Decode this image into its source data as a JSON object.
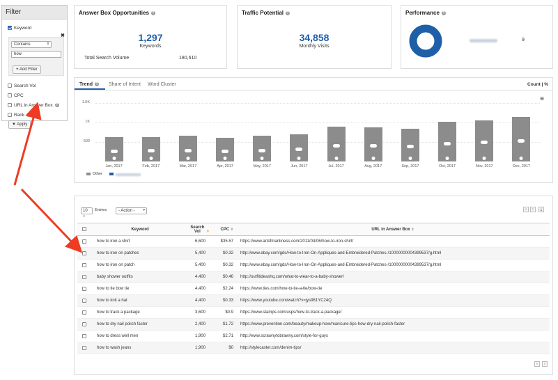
{
  "filter": {
    "title": "Filter",
    "keyword_label": "Keyword",
    "keyword_checked": true,
    "operator": "Contains",
    "value": "how",
    "add_filter_label": "Add Filter",
    "options": [
      {
        "label": "Search Vol",
        "checked": false,
        "has_help": false
      },
      {
        "label": "CPC",
        "checked": false,
        "has_help": false
      },
      {
        "label": "URL in Answer Box",
        "checked": false,
        "has_help": true
      },
      {
        "label": "Rank",
        "checked": false,
        "has_help": true
      }
    ],
    "apply_label": "Apply"
  },
  "stats": {
    "answer_box": {
      "title": "Answer Box Opportunities",
      "value": "1,297",
      "unit": "Keywords",
      "total_label": "Total Search Volume",
      "total_value": "180,610"
    },
    "traffic": {
      "title": "Traffic Potential",
      "value": "34,858",
      "unit": "Monthly Visits"
    },
    "performance": {
      "title": "Performance",
      "legend_value": "9",
      "donut_fraction": 1.0
    }
  },
  "tabs": [
    {
      "label": "Trend",
      "active": true,
      "help": true
    },
    {
      "label": "Share of Intent",
      "active": false,
      "help": false
    },
    {
      "label": "Word Cluster",
      "active": false,
      "help": false
    }
  ],
  "count_toggle": "Count | %",
  "colors": {
    "accent": "#1f5fa8",
    "bar": "#8c8c8c"
  },
  "chart_data": {
    "type": "bar",
    "categories": [
      "Jan, 2017",
      "Feb, 2017",
      "Mar, 2017",
      "Apr, 2017",
      "May, 2017",
      "Jun, 2017",
      "Jul, 2017",
      "Aug, 2017",
      "Sep, 2017",
      "Oct, 2017",
      "Nov, 2017",
      "Dec, 2017"
    ],
    "series": [
      {
        "values": [
          620,
          630,
          660,
          600,
          660,
          700,
          900,
          880,
          840,
          1010,
          1060,
          1150
        ]
      }
    ],
    "yticks": [
      "1.5K",
      "1K",
      "500"
    ],
    "ylim": [
      0,
      1500
    ],
    "legend": [
      "Other"
    ],
    "grid": true
  },
  "table": {
    "entries_value": "10",
    "entries_label": "Entries",
    "action_label": "- Action -",
    "columns": [
      "Keyword",
      "Search Vol",
      "CPC",
      "URL in Answer Box"
    ],
    "rows": [
      {
        "keyword": "how to iron a shirt",
        "vol": "6,600",
        "cpc": "$35.57",
        "url": "https://www.artofmanliness.com/2011/04/06/how-to-iron-shirt/"
      },
      {
        "keyword": "how to iron on patches",
        "vol": "5,400",
        "cpc": "$0.32",
        "url": "http://www.ebay.com/gds/How-to-Iron-On-Appliques-and-Embroidered-Patches-/10000000004399537/g.html"
      },
      {
        "keyword": "how to iron on patch",
        "vol": "5,400",
        "cpc": "$0.32",
        "url": "http://www.ebay.com/gds/How-to-Iron-On-Appliques-and-Embroidered-Patches-/10000000004399537/g.html"
      },
      {
        "keyword": "baby shower outfits",
        "vol": "4,400",
        "cpc": "$0.46",
        "url": "http://outfitideashq.com/what-to-wear-to-a-baby-shower/"
      },
      {
        "keyword": "how to tie bow tie",
        "vol": "4,400",
        "cpc": "$2.24",
        "url": "https://www.ties.com/how-to-tie-a-tie/bow-tie"
      },
      {
        "keyword": "how to knit a hat",
        "vol": "4,400",
        "cpc": "$0.33",
        "url": "https://www.youtube.com/watch?v=jys981YC24Q"
      },
      {
        "keyword": "how to track a package",
        "vol": "3,600",
        "cpc": "$0.9",
        "url": "https://www.stamps.com/usps/how-to-track-a-package/"
      },
      {
        "keyword": "how to dry nail polish faster",
        "vol": "2,400",
        "cpc": "$1.72",
        "url": "https://www.prevention.com/beauty/makeup-how/manicure-tips-how-dry-nail-polish-faster"
      },
      {
        "keyword": "how to dress well men",
        "vol": "1,900",
        "cpc": "$2.71",
        "url": "http://www.scrawnytobrawny.com/style-for-guys"
      },
      {
        "keyword": "how to wash jeans",
        "vol": "1,900",
        "cpc": "$0",
        "url": "http://stylecaster.com/denim-tips/"
      }
    ]
  }
}
